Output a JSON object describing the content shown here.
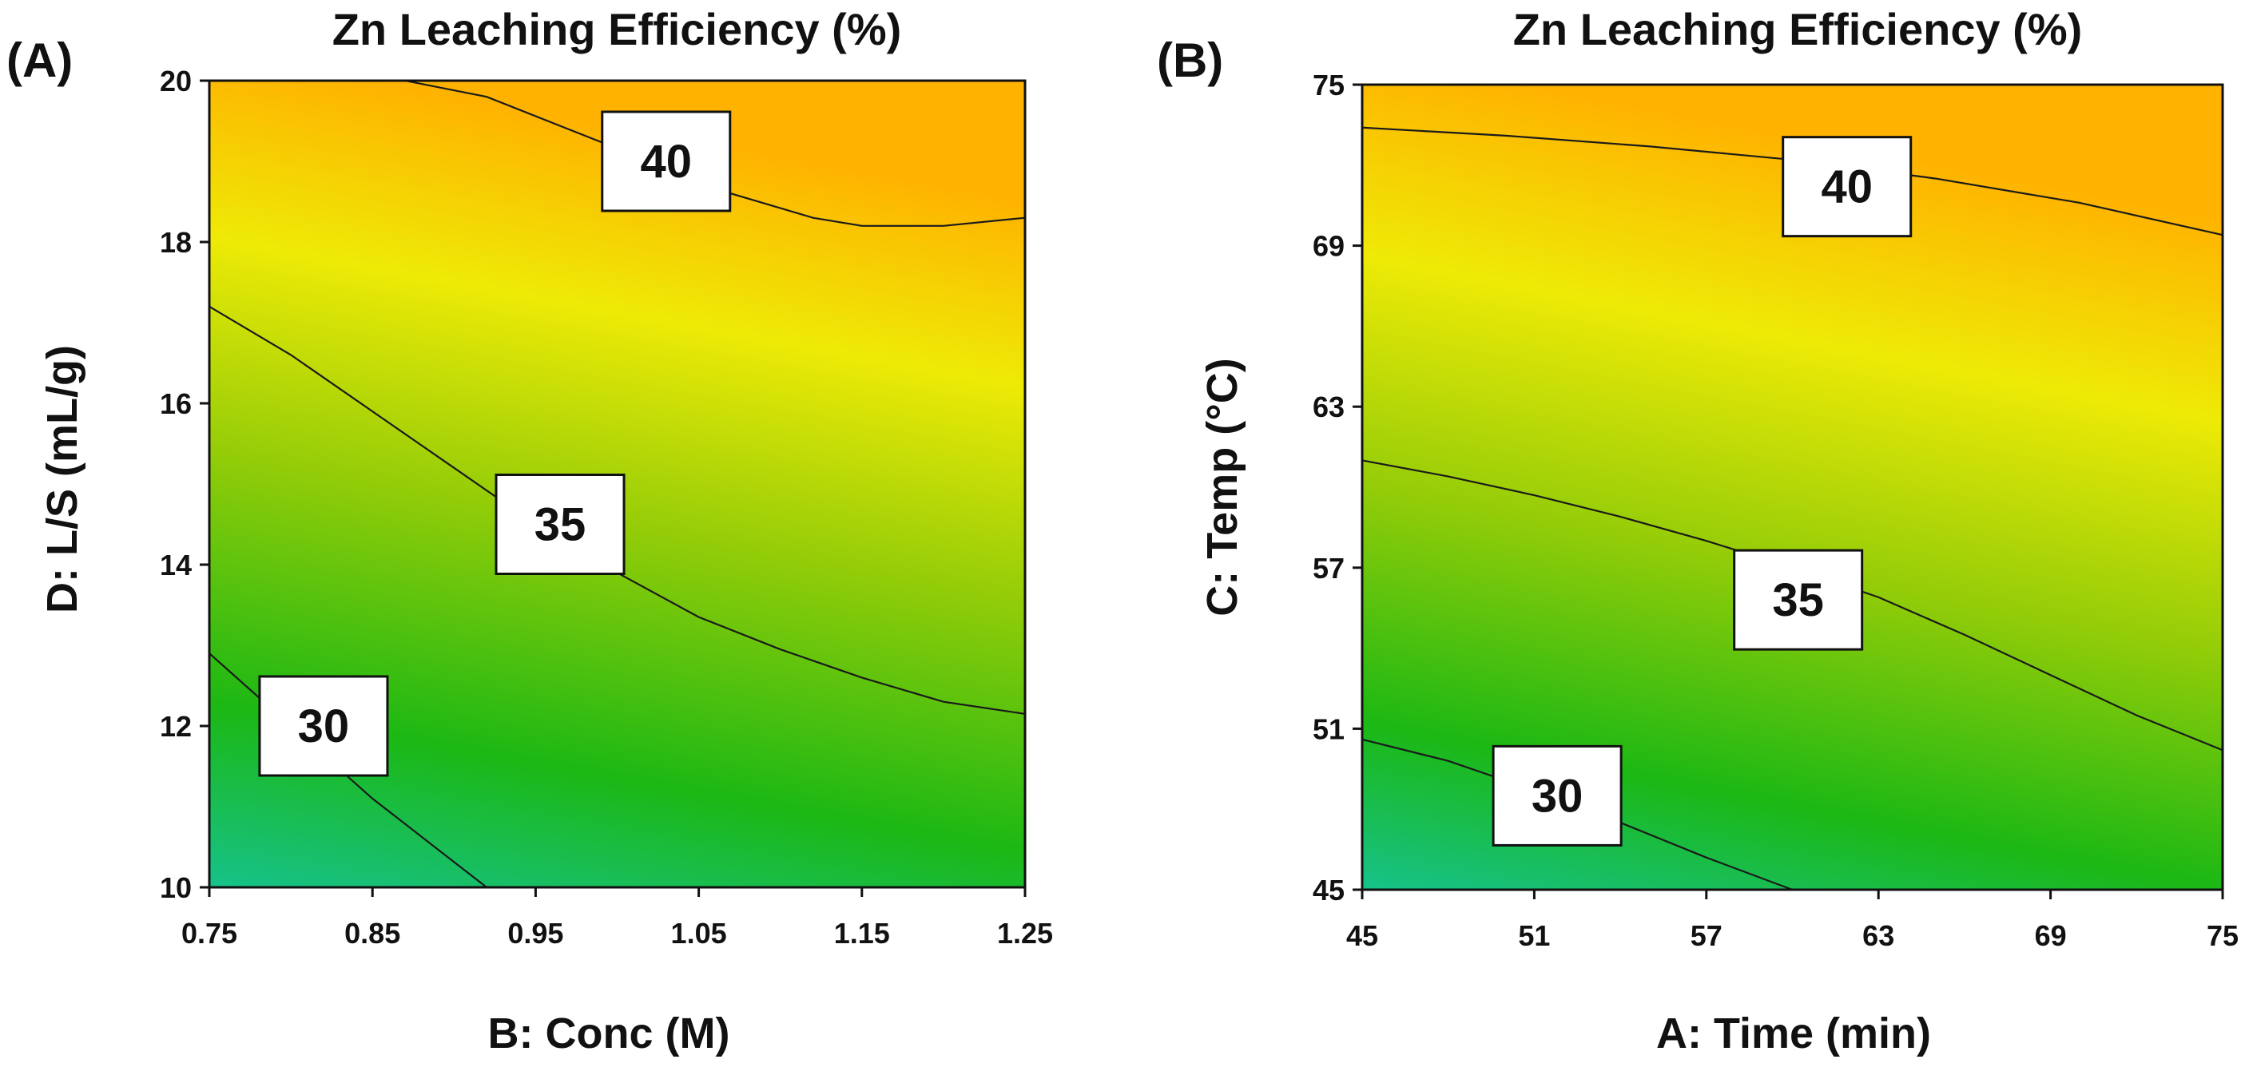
{
  "colors": {
    "low": "#16c28a",
    "mid_low": "#1cb814",
    "mid": "#93cc08",
    "mid_high": "#eeea06",
    "high": "#ffb300",
    "contour": "#1a1a1a"
  },
  "chart_data": [
    {
      "type": "heatmap",
      "panel_label": "(A)",
      "title": "Zn Leaching Efficiency (%)",
      "xlabel": "B: Conc (M)",
      "ylabel": "D: L/S (mL/g)",
      "xlim": [
        0.75,
        1.25
      ],
      "ylim": [
        10,
        20
      ],
      "xticks": [
        "0.75",
        "0.85",
        "0.95",
        "1.05",
        "1.15",
        "1.25"
      ],
      "yticks": [
        "10",
        "12",
        "14",
        "16",
        "18",
        "20"
      ],
      "contours": [
        {
          "level": 30,
          "label": "30",
          "label_at": [
            0.82,
            12
          ],
          "points": [
            [
              0.75,
              12.9
            ],
            [
              0.8,
              12.0
            ],
            [
              0.85,
              11.1
            ],
            [
              0.885,
              10.55
            ],
            [
              0.92,
              10.0
            ]
          ]
        },
        {
          "level": 35,
          "label": "35",
          "label_at": [
            0.965,
            14.5
          ],
          "points": [
            [
              0.75,
              17.2
            ],
            [
              0.8,
              16.6
            ],
            [
              0.85,
              15.9
            ],
            [
              0.9,
              15.2
            ],
            [
              0.95,
              14.5
            ],
            [
              1.0,
              13.9
            ],
            [
              1.05,
              13.35
            ],
            [
              1.1,
              12.95
            ],
            [
              1.15,
              12.6
            ],
            [
              1.2,
              12.3
            ],
            [
              1.25,
              12.15
            ]
          ]
        },
        {
          "level": 40,
          "label": "40",
          "label_at": [
            1.03,
            19.0
          ],
          "points": [
            [
              0.87,
              20.0
            ],
            [
              0.92,
              19.8
            ],
            [
              0.97,
              19.4
            ],
            [
              1.02,
              19.0
            ],
            [
              1.07,
              18.6
            ],
            [
              1.12,
              18.3
            ],
            [
              1.15,
              18.2
            ],
            [
              1.2,
              18.2
            ],
            [
              1.25,
              18.3
            ]
          ]
        }
      ],
      "surface": {
        "min": 28,
        "max": 44,
        "corners": {
          "x_lo_y_lo": 28,
          "x_hi_y_lo": 31.5,
          "x_lo_y_hi": 38,
          "x_hi_y_hi": 43.5
        }
      }
    },
    {
      "type": "heatmap",
      "panel_label": "(B)",
      "title": "Zn Leaching Efficiency (%)",
      "xlabel": "A: Time (min)",
      "ylabel": "C: Temp (°C)",
      "xlim": [
        45,
        75
      ],
      "ylim": [
        45,
        75
      ],
      "xticks": [
        "45",
        "51",
        "57",
        "63",
        "69",
        "75"
      ],
      "yticks": [
        "45",
        "51",
        "57",
        "63",
        "69",
        "75"
      ],
      "contours": [
        {
          "level": 30,
          "label": "30",
          "label_at": [
            51.8,
            48.5
          ],
          "points": [
            [
              45,
              50.6
            ],
            [
              48,
              49.8
            ],
            [
              51,
              48.7
            ],
            [
              54,
              47.5
            ],
            [
              57,
              46.2
            ],
            [
              60,
              45.0
            ]
          ]
        },
        {
          "level": 35,
          "label": "35",
          "label_at": [
            60.2,
            55.8
          ],
          "points": [
            [
              45,
              61.0
            ],
            [
              48,
              60.4
            ],
            [
              51,
              59.7
            ],
            [
              54,
              58.9
            ],
            [
              57,
              58.0
            ],
            [
              60,
              57.0
            ],
            [
              63,
              55.9
            ],
            [
              66,
              54.5
            ],
            [
              69,
              53.0
            ],
            [
              72,
              51.5
            ],
            [
              75,
              50.2
            ]
          ]
        },
        {
          "level": 40,
          "label": "40",
          "label_at": [
            61.9,
            71.2
          ],
          "points": [
            [
              45,
              73.4
            ],
            [
              50,
              73.1
            ],
            [
              55,
              72.7
            ],
            [
              60,
              72.2
            ],
            [
              65,
              71.5
            ],
            [
              70,
              70.6
            ],
            [
              75,
              69.4
            ]
          ]
        }
      ],
      "surface": {
        "min": 28,
        "max": 44,
        "corners": {
          "x_lo_y_lo": 28,
          "x_hi_y_lo": 31.5,
          "x_lo_y_hi": 41.5,
          "x_hi_y_hi": 43.5
        }
      }
    }
  ]
}
